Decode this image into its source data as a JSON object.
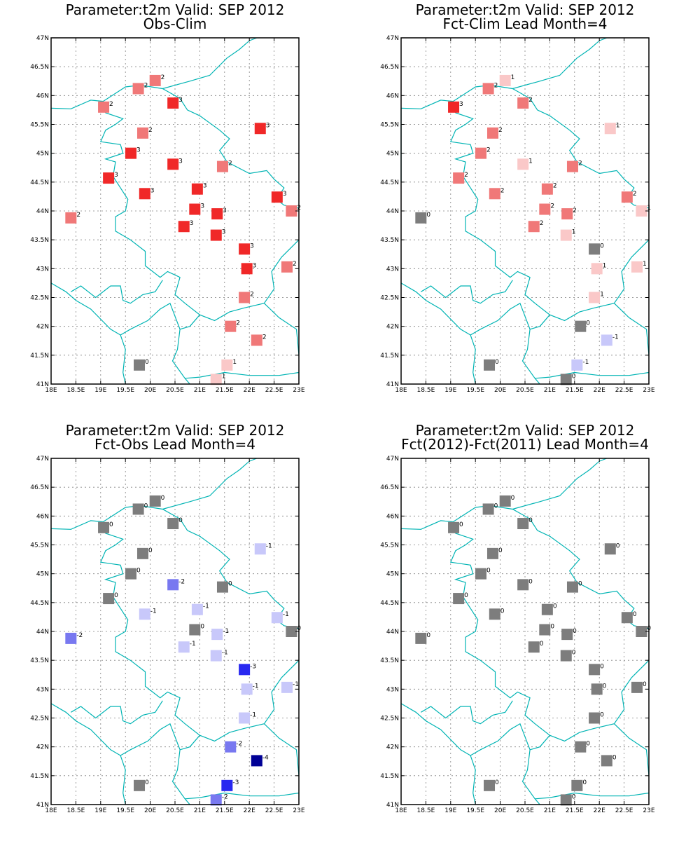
{
  "palette": {
    "-4": "#000096",
    "-3": "#2828f0",
    "-2": "#7878f0",
    "-1": "#c8c8fa",
    "0": "#7d7d7d",
    "1": "#fac8c8",
    "2": "#f07878",
    "3": "#f02828",
    "border": "#00b4b4",
    "grid": "#808080"
  },
  "axes": {
    "lon_range": [
      18,
      23
    ],
    "lat_range": [
      41,
      47
    ],
    "x_ticks": [
      "18E",
      "18.5E",
      "19E",
      "19.5E",
      "20E",
      "20.5E",
      "21E",
      "21.5E",
      "22E",
      "22.5E",
      "23E"
    ],
    "y_ticks": [
      "41N",
      "41.5N",
      "42N",
      "42.5N",
      "43N",
      "43.5N",
      "44N",
      "44.5N",
      "45N",
      "45.5N",
      "46N",
      "46.5N",
      "47N"
    ]
  },
  "stations": [
    {
      "lon": 20.1,
      "lat": 46.26
    },
    {
      "lon": 19.76,
      "lat": 46.12
    },
    {
      "lon": 19.06,
      "lat": 45.8
    },
    {
      "lon": 20.46,
      "lat": 45.87
    },
    {
      "lon": 19.85,
      "lat": 45.35
    },
    {
      "lon": 22.22,
      "lat": 45.43
    },
    {
      "lon": 19.61,
      "lat": 45.0
    },
    {
      "lon": 20.46,
      "lat": 44.81
    },
    {
      "lon": 21.46,
      "lat": 44.77
    },
    {
      "lon": 19.16,
      "lat": 44.57
    },
    {
      "lon": 20.95,
      "lat": 44.38
    },
    {
      "lon": 19.89,
      "lat": 44.3
    },
    {
      "lon": 22.56,
      "lat": 44.24
    },
    {
      "lon": 20.9,
      "lat": 44.03
    },
    {
      "lon": 22.85,
      "lat": 44.0
    },
    {
      "lon": 21.35,
      "lat": 43.95
    },
    {
      "lon": 18.4,
      "lat": 43.88
    },
    {
      "lon": 20.68,
      "lat": 43.73
    },
    {
      "lon": 21.33,
      "lat": 43.58
    },
    {
      "lon": 21.9,
      "lat": 43.34
    },
    {
      "lon": 21.95,
      "lat": 43.0
    },
    {
      "lon": 22.76,
      "lat": 43.03
    },
    {
      "lon": 21.9,
      "lat": 42.5
    },
    {
      "lon": 21.62,
      "lat": 42.0
    },
    {
      "lon": 22.15,
      "lat": 41.76
    },
    {
      "lon": 19.78,
      "lat": 41.33
    },
    {
      "lon": 21.55,
      "lat": 41.33
    },
    {
      "lon": 21.33,
      "lat": 41.08
    }
  ],
  "panels": [
    {
      "title_line1": "Parameter:t2m Valid: SEP 2012",
      "title_line2": "Obs-Clim",
      "values": [
        2,
        2,
        2,
        3,
        2,
        3,
        3,
        3,
        2,
        3,
        3,
        3,
        3,
        3,
        2,
        3,
        2,
        3,
        3,
        3,
        3,
        2,
        2,
        2,
        2,
        0,
        1,
        1
      ]
    },
    {
      "title_line1": "Parameter:t2m Valid: SEP 2012",
      "title_line2": "Fct-Clim Lead Month=4",
      "values": [
        1,
        2,
        3,
        2,
        2,
        1,
        2,
        1,
        2,
        2,
        2,
        2,
        2,
        2,
        1,
        2,
        0,
        2,
        1,
        0,
        1,
        1,
        1,
        0,
        -1,
        0,
        -1,
        0
      ]
    },
    {
      "title_line1": "Parameter:t2m Valid: SEP 2012",
      "title_line2": "Fct-Obs Lead Month=4",
      "values": [
        0,
        0,
        0,
        0,
        0,
        -1,
        0,
        -2,
        0,
        0,
        -1,
        -1,
        -1,
        0,
        0,
        -1,
        -2,
        -1,
        -1,
        -3,
        -1,
        -1,
        -1,
        -2,
        -4,
        0,
        -3,
        -2
      ]
    },
    {
      "title_line1": "Parameter:t2m Valid: SEP 2012",
      "title_line2": "Fct(2012)-Fct(2011) Lead Month=4",
      "values": [
        0,
        0,
        0,
        0,
        0,
        0,
        0,
        0,
        0,
        0,
        0,
        0,
        0,
        0,
        0,
        0,
        0,
        0,
        0,
        0,
        0,
        0,
        0,
        0,
        0,
        0,
        0,
        0
      ]
    }
  ]
}
